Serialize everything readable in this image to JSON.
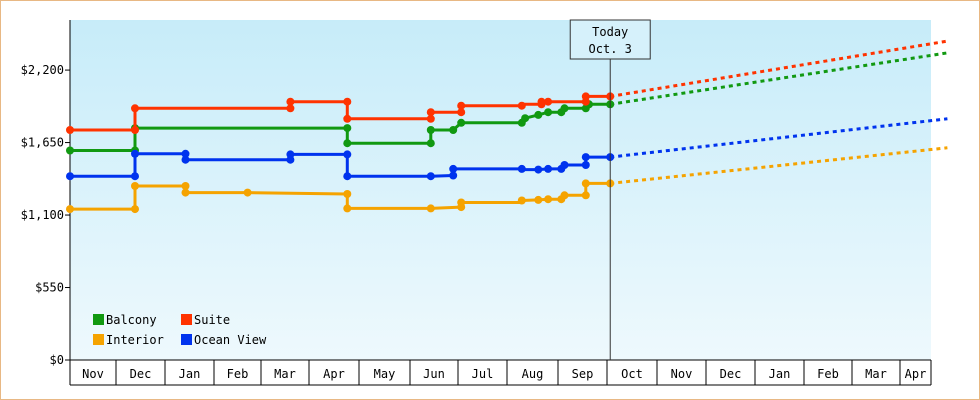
{
  "chart_data": {
    "type": "line",
    "y_ticks": [
      "$0",
      "$550",
      "$1,100",
      "$1,650",
      "$2,200"
    ],
    "y_tick_values": [
      0,
      550,
      1100,
      1650,
      2200
    ],
    "ylim": [
      0,
      2580
    ],
    "months": [
      "Nov",
      "Dec",
      "Jan",
      "Feb",
      "Mar",
      "Apr",
      "May",
      "Jun",
      "Jul",
      "Aug",
      "Sep",
      "Oct",
      "Nov",
      "Dec",
      "Jan",
      "Feb",
      "Mar",
      "Apr"
    ],
    "month_boundaries": [
      "Nov 1",
      "Dec 1",
      "Jan 1",
      "Feb 1",
      "Mar 1",
      "Apr 1",
      "May 1",
      "Jun 1",
      "Jul 1",
      "Aug 1",
      "Sep 1",
      "Oct 1",
      "Nov 1",
      "Dec 1",
      "Jan 1",
      "Feb 1",
      "Mar 1",
      "Apr 1"
    ],
    "today": {
      "line1": "Today",
      "line2": "Oct. 3",
      "x": "Oct 3"
    },
    "grid": false,
    "legend_placement": "bottom-left",
    "series": [
      {
        "name": "Balcony",
        "color": "#119911",
        "points": [
          [
            "Nov 1",
            1590
          ],
          [
            "Dec 13",
            1590
          ],
          [
            "Dec 13",
            1760
          ],
          [
            "Apr 24",
            1760
          ],
          [
            "Apr 24",
            1645
          ],
          [
            "Jun 14",
            1645
          ],
          [
            "Jun 14",
            1745
          ],
          [
            "Jun 28",
            1745
          ],
          [
            "Jul 3",
            1800
          ],
          [
            "Aug 10",
            1800
          ],
          [
            "Aug 12",
            1835
          ],
          [
            "Aug 20",
            1860
          ],
          [
            "Aug 26",
            1880
          ],
          [
            "Sep 3",
            1880
          ],
          [
            "Sep 5",
            1910
          ],
          [
            "Sep 18",
            1910
          ],
          [
            "Sep 20",
            1940
          ],
          [
            "Oct 3",
            1940
          ]
        ],
        "markers": [
          [
            "Nov 1",
            1590
          ],
          [
            "Dec 13",
            1590
          ],
          [
            "Dec 13",
            1760
          ],
          [
            "Apr 24",
            1760
          ],
          [
            "Apr 24",
            1645
          ],
          [
            "Jun 14",
            1645
          ],
          [
            "Jun 14",
            1745
          ],
          [
            "Jun 28",
            1745
          ],
          [
            "Jul 3",
            1800
          ],
          [
            "Aug 10",
            1800
          ],
          [
            "Aug 12",
            1835
          ],
          [
            "Aug 20",
            1860
          ],
          [
            "Aug 26",
            1880
          ],
          [
            "Sep 3",
            1880
          ],
          [
            "Sep 5",
            1910
          ],
          [
            "Sep 18",
            1910
          ],
          [
            "Sep 20",
            1940
          ],
          [
            "Oct 3",
            1940
          ]
        ],
        "projection": [
          [
            "Oct 3",
            1940
          ],
          [
            "Apr 30",
            2330
          ]
        ]
      },
      {
        "name": "Suite",
        "color": "#ff3300",
        "points": [
          [
            "Nov 1",
            1745
          ],
          [
            "Dec 13",
            1745
          ],
          [
            "Dec 13",
            1910
          ],
          [
            "Mar 20",
            1910
          ],
          [
            "Mar 20",
            1960
          ],
          [
            "Apr 24",
            1960
          ],
          [
            "Apr 24",
            1830
          ],
          [
            "Jun 14",
            1830
          ],
          [
            "Jun 14",
            1880
          ],
          [
            "Jul 3",
            1880
          ],
          [
            "Jul 3",
            1930
          ],
          [
            "Aug 10",
            1930
          ],
          [
            "Aug 10",
            1940
          ],
          [
            "Aug 22",
            1940
          ],
          [
            "Aug 22",
            1960
          ],
          [
            "Aug 26",
            1960
          ],
          [
            "Sep 18",
            1960
          ],
          [
            "Sep 18",
            2000
          ],
          [
            "Oct 3",
            2000
          ]
        ],
        "markers": [
          [
            "Nov 1",
            1745
          ],
          [
            "Dec 13",
            1745
          ],
          [
            "Dec 13",
            1910
          ],
          [
            "Mar 20",
            1910
          ],
          [
            "Mar 20",
            1960
          ],
          [
            "Apr 24",
            1960
          ],
          [
            "Apr 24",
            1830
          ],
          [
            "Jun 14",
            1830
          ],
          [
            "Jun 14",
            1880
          ],
          [
            "Jul 3",
            1880
          ],
          [
            "Jul 3",
            1930
          ],
          [
            "Aug 10",
            1930
          ],
          [
            "Aug 22",
            1940
          ],
          [
            "Aug 22",
            1960
          ],
          [
            "Aug 26",
            1960
          ],
          [
            "Sep 18",
            1960
          ],
          [
            "Sep 18",
            2000
          ],
          [
            "Oct 3",
            2000
          ]
        ],
        "projection": [
          [
            "Oct 3",
            2000
          ],
          [
            "Apr 30",
            2420
          ]
        ]
      },
      {
        "name": "Interior",
        "color": "#f5a300",
        "points": [
          [
            "Nov 1",
            1145
          ],
          [
            "Dec 13",
            1145
          ],
          [
            "Dec 13",
            1320
          ],
          [
            "Jan 14",
            1320
          ],
          [
            "Jan 14",
            1270
          ],
          [
            "Feb 21",
            1270
          ],
          [
            "Apr 24",
            1260
          ],
          [
            "Apr 24",
            1150
          ],
          [
            "Jun 14",
            1150
          ],
          [
            "Jul 3",
            1160
          ],
          [
            "Jul 3",
            1195
          ],
          [
            "Aug 10",
            1195
          ],
          [
            "Aug 10",
            1210
          ],
          [
            "Aug 20",
            1215
          ],
          [
            "Aug 26",
            1220
          ],
          [
            "Sep 3",
            1220
          ],
          [
            "Sep 5",
            1250
          ],
          [
            "Sep 18",
            1250
          ],
          [
            "Sep 18",
            1340
          ],
          [
            "Oct 3",
            1340
          ]
        ],
        "markers": [
          [
            "Nov 1",
            1145
          ],
          [
            "Dec 13",
            1145
          ],
          [
            "Dec 13",
            1320
          ],
          [
            "Jan 14",
            1320
          ],
          [
            "Jan 14",
            1270
          ],
          [
            "Feb 21",
            1270
          ],
          [
            "Apr 24",
            1260
          ],
          [
            "Apr 24",
            1150
          ],
          [
            "Jun 14",
            1150
          ],
          [
            "Jul 3",
            1160
          ],
          [
            "Jul 3",
            1195
          ],
          [
            "Aug 10",
            1210
          ],
          [
            "Aug 20",
            1215
          ],
          [
            "Aug 26",
            1220
          ],
          [
            "Sep 3",
            1220
          ],
          [
            "Sep 5",
            1250
          ],
          [
            "Sep 18",
            1250
          ],
          [
            "Sep 18",
            1340
          ],
          [
            "Oct 3",
            1340
          ]
        ],
        "projection": [
          [
            "Oct 3",
            1340
          ],
          [
            "Apr 30",
            1610
          ]
        ]
      },
      {
        "name": "Ocean View",
        "color": "#0033ee",
        "points": [
          [
            "Nov 1",
            1395
          ],
          [
            "Dec 13",
            1395
          ],
          [
            "Dec 13",
            1565
          ],
          [
            "Jan 14",
            1565
          ],
          [
            "Jan 14",
            1520
          ],
          [
            "Mar 20",
            1520
          ],
          [
            "Mar 20",
            1560
          ],
          [
            "Apr 24",
            1560
          ],
          [
            "Apr 24",
            1395
          ],
          [
            "Jun 14",
            1395
          ],
          [
            "Jun 28",
            1400
          ],
          [
            "Jun 28",
            1450
          ],
          [
            "Aug 10",
            1450
          ],
          [
            "Aug 10",
            1445
          ],
          [
            "Aug 20",
            1445
          ],
          [
            "Aug 26",
            1450
          ],
          [
            "Sep 3",
            1450
          ],
          [
            "Sep 5",
            1480
          ],
          [
            "Sep 18",
            1480
          ],
          [
            "Sep 18",
            1540
          ],
          [
            "Oct 3",
            1540
          ]
        ],
        "markers": [
          [
            "Nov 1",
            1395
          ],
          [
            "Dec 13",
            1395
          ],
          [
            "Dec 13",
            1565
          ],
          [
            "Jan 14",
            1565
          ],
          [
            "Jan 14",
            1520
          ],
          [
            "Mar 20",
            1520
          ],
          [
            "Mar 20",
            1560
          ],
          [
            "Apr 24",
            1560
          ],
          [
            "Apr 24",
            1395
          ],
          [
            "Jun 14",
            1395
          ],
          [
            "Jun 28",
            1400
          ],
          [
            "Jun 28",
            1450
          ],
          [
            "Aug 10",
            1450
          ],
          [
            "Aug 20",
            1445
          ],
          [
            "Aug 26",
            1450
          ],
          [
            "Sep 3",
            1450
          ],
          [
            "Sep 5",
            1480
          ],
          [
            "Sep 18",
            1480
          ],
          [
            "Sep 18",
            1540
          ],
          [
            "Oct 3",
            1540
          ]
        ],
        "projection": [
          [
            "Oct 3",
            1540
          ],
          [
            "Apr 30",
            1830
          ]
        ]
      }
    ],
    "legend": [
      {
        "label": "Balcony",
        "color": "#119911"
      },
      {
        "label": "Suite",
        "color": "#ff3300"
      },
      {
        "label": "Interior",
        "color": "#f5a300"
      },
      {
        "label": "Ocean View",
        "color": "#0033ee"
      }
    ]
  }
}
